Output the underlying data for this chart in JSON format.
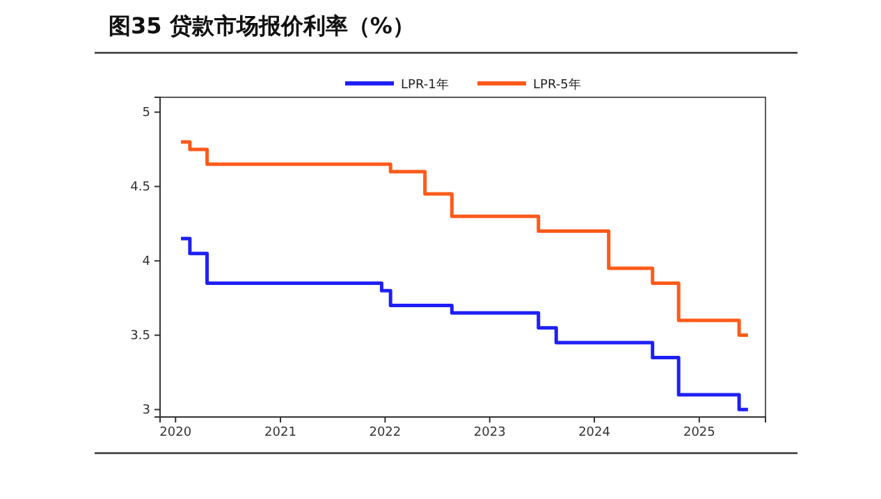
{
  "chart_data": {
    "type": "step",
    "title": "图35 贷款市场报价利率（%）",
    "series": [
      {
        "name": "LPR-1年",
        "color": "#1f1ff5",
        "x": [
          "2020-01-20",
          "2020-02-20",
          "2020-04-20",
          "2021-12-20",
          "2022-01-20",
          "2022-08-22",
          "2023-06-20",
          "2023-08-21",
          "2024-07-22",
          "2024-10-21",
          "2025-05-20",
          "2025-06-20"
        ],
        "values": [
          4.15,
          4.05,
          3.85,
          3.8,
          3.7,
          3.65,
          3.55,
          3.45,
          3.35,
          3.1,
          3.0,
          3.0
        ]
      },
      {
        "name": "LPR-5年",
        "color": "#ff5a1a",
        "x": [
          "2020-01-20",
          "2020-02-20",
          "2020-04-20",
          "2022-01-20",
          "2022-05-20",
          "2022-08-22",
          "2023-06-20",
          "2024-02-20",
          "2024-07-22",
          "2024-10-21",
          "2025-05-20",
          "2025-06-20"
        ],
        "values": [
          4.8,
          4.75,
          4.65,
          4.6,
          4.45,
          4.3,
          4.2,
          3.95,
          3.85,
          3.6,
          3.5,
          3.5
        ]
      }
    ],
    "xlim": [
      "2019-11-08",
      "2025-08-20"
    ],
    "xticks": [
      {
        "value": "2020-01-01",
        "label": "2020"
      },
      {
        "value": "2021-01-01",
        "label": "2021"
      },
      {
        "value": "2022-01-01",
        "label": "2022"
      },
      {
        "value": "2023-01-01",
        "label": "2023"
      },
      {
        "value": "2024-01-01",
        "label": "2024"
      },
      {
        "value": "2025-01-01",
        "label": "2025"
      }
    ],
    "ylim": [
      2.95,
      5.1
    ],
    "yticks": [
      3,
      3.5,
      4,
      4.5,
      5
    ],
    "legend": "top",
    "grid": false,
    "line_style": "solid",
    "marker": "none"
  }
}
